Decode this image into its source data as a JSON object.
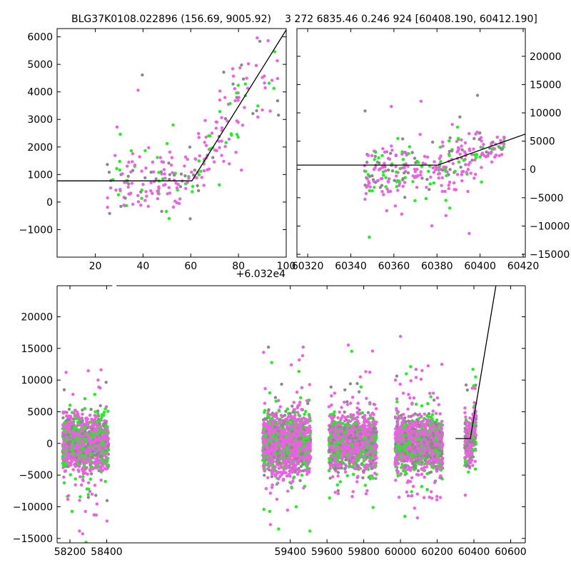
{
  "colors": {
    "magenta": "#ee5fe3",
    "green": "#1bf21b",
    "gray": "#8a8a8a",
    "model_line": "#000000"
  },
  "chart_data": [
    {
      "type": "scatter",
      "panel": "top-left",
      "title": "BLG37K0108.022896 (156.69, 9005.92)",
      "x_offset_label": "+6.032e4",
      "xlim": [
        4,
        100
      ],
      "ylim": [
        -2000,
        6300
      ],
      "xticks": [
        20,
        40,
        60,
        80,
        100
      ],
      "xtick_labels": [
        "20",
        "40",
        "60",
        "80",
        "100"
      ],
      "yticks": [
        -1000,
        0,
        1000,
        2000,
        3000,
        4000,
        5000,
        6000
      ],
      "ytick_labels": [
        "−1000",
        "0",
        "1000",
        "2000",
        "3000",
        "4000",
        "5000",
        "6000"
      ],
      "y_axis_side": "left",
      "model_line": {
        "x": [
          4,
          60.5,
          100
        ],
        "y": [
          770,
          770,
          6250
        ]
      },
      "grid": false
    },
    {
      "type": "scatter",
      "panel": "top-right",
      "title": "3 272 6835.46 0.246 924 [60408.190, 60412.190]",
      "xlim": [
        60315,
        60421
      ],
      "ylim": [
        -15500,
        24900
      ],
      "xticks": [
        60320,
        60340,
        60360,
        60380,
        60400,
        60420
      ],
      "xtick_labels": [
        "60320",
        "60340",
        "60360",
        "60380",
        "60400",
        "60420"
      ],
      "yticks": [
        -15000,
        -10000,
        -5000,
        0,
        5000,
        10000,
        15000,
        20000
      ],
      "ytick_labels": [
        "−15000",
        "−10000",
        "−5000",
        "0",
        "5000",
        "10000",
        "15000",
        "20000"
      ],
      "y_axis_side": "right",
      "model_line": {
        "x": [
          60315,
          60380.5,
          60421
        ],
        "y": [
          770,
          770,
          6250
        ]
      },
      "grid": false
    },
    {
      "type": "scatter",
      "panel": "bottom",
      "xlim": [
        58130,
        60680
      ],
      "ylim": [
        -15700,
        24900
      ],
      "xticks": [
        58200,
        58400,
        59400,
        59600,
        59800,
        60000,
        60200,
        60400,
        60600
      ],
      "xtick_labels": [
        "58200",
        "58400",
        "59400",
        "59600",
        "59800",
        "60000",
        "60200",
        "60400",
        "60600"
      ],
      "yticks": [
        -15000,
        -10000,
        -5000,
        0,
        5000,
        10000,
        15000,
        20000
      ],
      "ytick_labels": [
        "−15000",
        "−10000",
        "−5000",
        "0",
        "5000",
        "10000",
        "15000",
        "20000"
      ],
      "y_axis_side": "left",
      "x_axis_break_after": 58430,
      "model_line": {
        "x": [
          60300,
          60380.5,
          60520
        ],
        "y": [
          770,
          770,
          24900
        ]
      },
      "seasons": [
        {
          "x_range": [
            58160,
            58410
          ],
          "n_points": 1300
        },
        {
          "x_range": [
            59250,
            59510
          ],
          "n_points": 1700
        },
        {
          "x_range": [
            59610,
            59870
          ],
          "n_points": 1300
        },
        {
          "x_range": [
            59970,
            60230
          ],
          "n_points": 1400
        },
        {
          "x_range": [
            60350,
            60412
          ],
          "n_points": 320
        }
      ],
      "grid": false
    }
  ]
}
